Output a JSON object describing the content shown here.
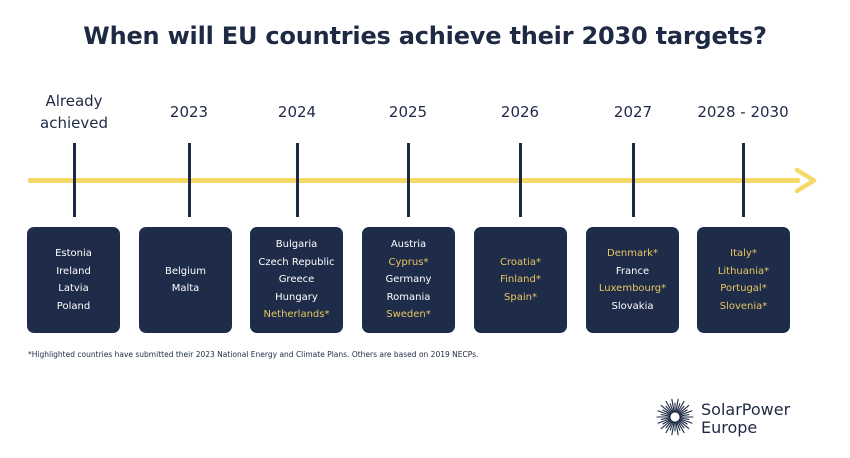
{
  "title": "When will EU countries achieve their 2030 targets?",
  "columns": [
    {
      "label_line1": "Already",
      "label_line2": "achieved",
      "countries": [
        {
          "name": "Estonia",
          "highlighted": false
        },
        {
          "name": "Ireland",
          "highlighted": false
        },
        {
          "name": "Latvia",
          "highlighted": false
        },
        {
          "name": "Poland",
          "highlighted": false
        }
      ]
    },
    {
      "label_line1": "2023",
      "label_line2": "",
      "countries": [
        {
          "name": "Belgium",
          "highlighted": false
        },
        {
          "name": "Malta",
          "highlighted": false
        }
      ]
    },
    {
      "label_line1": "2024",
      "label_line2": "",
      "countries": [
        {
          "name": "Bulgaria",
          "highlighted": false
        },
        {
          "name": "Czech Republic",
          "highlighted": false
        },
        {
          "name": "Greece",
          "highlighted": false
        },
        {
          "name": "Hungary",
          "highlighted": false
        },
        {
          "name": "Netherlands*",
          "highlighted": true
        }
      ]
    },
    {
      "label_line1": "2025",
      "label_line2": "",
      "countries": [
        {
          "name": "Austria",
          "highlighted": false
        },
        {
          "name": "Cyprus*",
          "highlighted": true
        },
        {
          "name": "Germany",
          "highlighted": false
        },
        {
          "name": "Romania",
          "highlighted": false
        },
        {
          "name": "Sweden*",
          "highlighted": true
        }
      ]
    },
    {
      "label_line1": "2026",
      "label_line2": "",
      "countries": [
        {
          "name": "Croatia*",
          "highlighted": true
        },
        {
          "name": "Finland*",
          "highlighted": true
        },
        {
          "name": "Spain*",
          "highlighted": true
        }
      ]
    },
    {
      "label_line1": "2027",
      "label_line2": "",
      "countries": [
        {
          "name": "Denmark*",
          "highlighted": true
        },
        {
          "name": "France",
          "highlighted": false
        },
        {
          "name": "Luxembourg*",
          "highlighted": true
        },
        {
          "name": "Slovakia",
          "highlighted": false
        }
      ]
    },
    {
      "label_line1": "2028 - 2030",
      "label_line2": "",
      "countries": [
        {
          "name": "Italy*",
          "highlighted": true
        },
        {
          "name": "Lithuania*",
          "highlighted": true
        },
        {
          "name": "Portugal*",
          "highlighted": true
        },
        {
          "name": "Slovenia*",
          "highlighted": true
        }
      ]
    }
  ],
  "footnote": "*Highlighted countries have submitted their 2023 National Energy and Climate Plans. Others are based on 2019 NECPs.",
  "logo": {
    "line1": "SolarPower",
    "line2": "Europe"
  },
  "colors": {
    "navy": "#1e2c4a",
    "highlight": "#e8c65f",
    "timeline": "#f5d968"
  }
}
